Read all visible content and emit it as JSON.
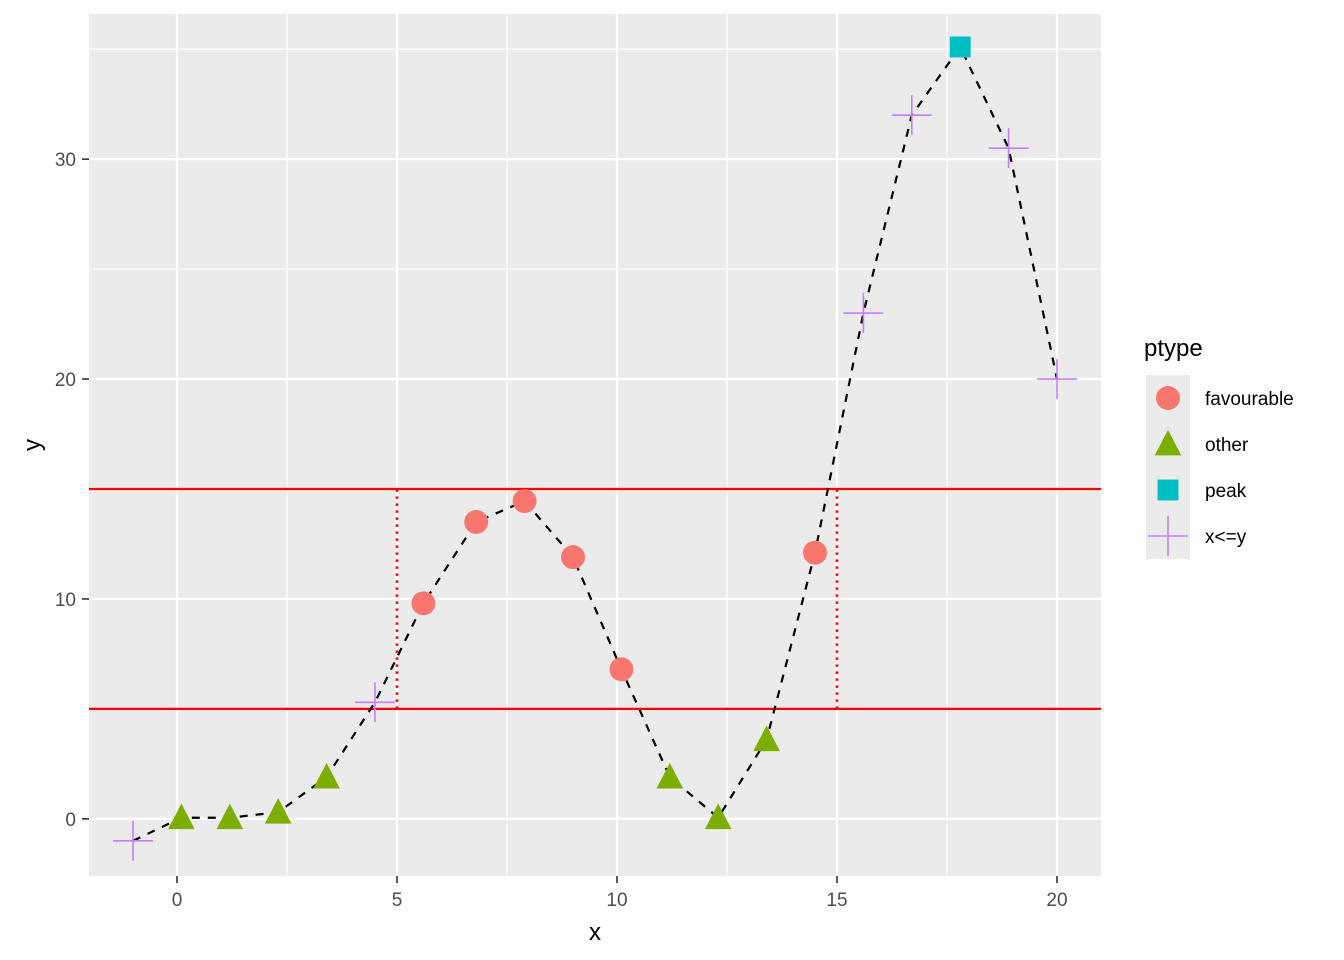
{
  "chart_data": {
    "type": "scatter",
    "xlabel": "x",
    "ylabel": "y",
    "xlim": [
      -2,
      21
    ],
    "ylim": [
      -2.6,
      36.6
    ],
    "x_ticks": [
      0,
      5,
      10,
      15,
      20
    ],
    "y_ticks": [
      0,
      10,
      20,
      30
    ],
    "x_tick_labels": [
      "0",
      "5",
      "10",
      "15",
      "20"
    ],
    "y_tick_labels": [
      "0",
      "10",
      "20",
      "30"
    ],
    "grid": true,
    "legend": {
      "title": "ptype",
      "position": "right",
      "entries": [
        {
          "label": "favourable",
          "shape": "circle",
          "color": "#F8766D"
        },
        {
          "label": "other",
          "shape": "triangle",
          "color": "#7CAE00"
        },
        {
          "label": "peak",
          "shape": "square",
          "color": "#00BFC4"
        },
        {
          "label": "x<=y",
          "shape": "cross",
          "color": "#C77CFF"
        }
      ]
    },
    "points": [
      {
        "x": -1.0,
        "y": -1.0,
        "ptype": "x<=y"
      },
      {
        "x": 0.1,
        "y": 0.05,
        "ptype": "other"
      },
      {
        "x": 1.2,
        "y": 0.05,
        "ptype": "other"
      },
      {
        "x": 2.3,
        "y": 0.3,
        "ptype": "other"
      },
      {
        "x": 3.4,
        "y": 1.9,
        "ptype": "other"
      },
      {
        "x": 4.5,
        "y": 5.3,
        "ptype": "x<=y"
      },
      {
        "x": 5.6,
        "y": 9.8,
        "ptype": "favourable"
      },
      {
        "x": 6.8,
        "y": 13.5,
        "ptype": "favourable"
      },
      {
        "x": 7.9,
        "y": 14.45,
        "ptype": "favourable"
      },
      {
        "x": 9.0,
        "y": 11.9,
        "ptype": "favourable"
      },
      {
        "x": 10.1,
        "y": 6.8,
        "ptype": "favourable"
      },
      {
        "x": 11.2,
        "y": 1.9,
        "ptype": "other"
      },
      {
        "x": 12.3,
        "y": 0.05,
        "ptype": "other"
      },
      {
        "x": 13.4,
        "y": 3.6,
        "ptype": "other"
      },
      {
        "x": 14.5,
        "y": 12.1,
        "ptype": "favourable"
      },
      {
        "x": 15.6,
        "y": 23.0,
        "ptype": "x<=y"
      },
      {
        "x": 16.7,
        "y": 32.0,
        "ptype": "x<=y"
      },
      {
        "x": 17.8,
        "y": 35.1,
        "ptype": "peak"
      },
      {
        "x": 18.9,
        "y": 30.5,
        "ptype": "x<=y"
      },
      {
        "x": 20.0,
        "y": 20.0,
        "ptype": "x<=y"
      }
    ],
    "hlines": [
      {
        "y": 5,
        "color": "#FF0000",
        "style": "solid"
      },
      {
        "y": 15,
        "color": "#FF0000",
        "style": "solid"
      }
    ],
    "vsegments": [
      {
        "x": 5,
        "y0": 5,
        "y1": 15,
        "color": "#FF0000",
        "style": "dotted"
      },
      {
        "x": 15,
        "y0": 5,
        "y1": 15,
        "color": "#FF0000",
        "style": "dotted"
      }
    ],
    "connecting_line": {
      "color": "#000000",
      "style": "dashed"
    }
  },
  "colors": {
    "panel_background": "#EBEBEB",
    "grid_major": "#FFFFFF"
  }
}
